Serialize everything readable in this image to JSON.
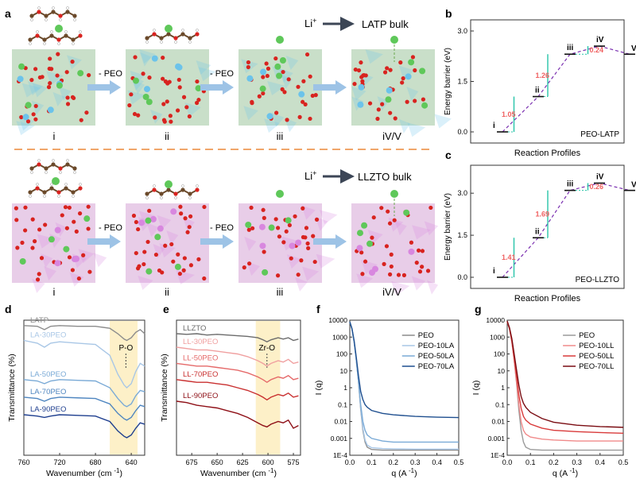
{
  "panels": {
    "a": "a",
    "b": "b",
    "c": "c",
    "d": "d",
    "e": "e",
    "f": "f",
    "g": "g"
  },
  "schematic": {
    "top": {
      "li_label": "Li",
      "li_sup": "+",
      "bulk": "LATP bulk",
      "steps": [
        "- PEO",
        "- PEO"
      ],
      "stages": [
        "i",
        "ii",
        "iii",
        "iV/V"
      ]
    },
    "bottom": {
      "li_label": "Li",
      "li_sup": "+",
      "bulk": "LLZTO bulk",
      "steps": [
        "- PEO",
        "- PEO"
      ],
      "stages": [
        "i",
        "ii",
        "iii",
        "iV/V"
      ]
    },
    "colors": {
      "oxygen": "#d8231f",
      "carbon": "#6b4a2b",
      "hydrogen": "#ffffff",
      "lithium": "#5fc85a",
      "ti_latp": "#6cc3ea",
      "zr_llzto": "#d887df",
      "arrow": "#9dc3e6",
      "divider": "#f0a66b"
    }
  },
  "energy": {
    "b": {
      "ylabel": "Energy barrier (eV)",
      "xlabel": "Reaction Profiles",
      "tag": "PEO-LATP",
      "yticks": [
        "3.0",
        "1.5",
        "0.0"
      ],
      "ylim": [
        0,
        3.0
      ],
      "states": [
        "i",
        "ii",
        "iii",
        "iV",
        "V"
      ],
      "levels": [
        0.0,
        1.05,
        2.31,
        2.55,
        2.31
      ],
      "barriers": [
        "1.05",
        "1.26",
        "0.24"
      ]
    },
    "c": {
      "ylabel": "Energy barrier (eV)",
      "xlabel": "Reaction Profiles",
      "tag": "PEO-LLZTO",
      "yticks": [
        "3.0",
        "1.5",
        "0.0"
      ],
      "ylim": [
        0,
        3.6
      ],
      "states": [
        "i",
        "ii",
        "iii",
        "iV",
        "V"
      ],
      "levels": [
        0.0,
        1.41,
        3.1,
        3.36,
        3.1
      ],
      "barriers": [
        "1.41",
        "1.69",
        "0.26"
      ]
    }
  },
  "chart_data": [
    {
      "type": "line",
      "title": "",
      "xlabel": "Wavenumber (cm -1)",
      "ylabel": "Transmittance (%)",
      "xlim": [
        760,
        625
      ],
      "xticks": [
        "760",
        "720",
        "680",
        "640"
      ],
      "highlight": {
        "from": 664,
        "to": 633,
        "label": "P-O",
        "at": 646
      },
      "series": [
        {
          "name": "LATP",
          "color": "#8c8c8c",
          "x": [
            760,
            745,
            737,
            730,
            720,
            700,
            680,
            664,
            655,
            648,
            645,
            640,
            635,
            630,
            625
          ],
          "y": [
            0.96,
            0.955,
            0.93,
            0.955,
            0.96,
            0.955,
            0.955,
            0.94,
            0.9,
            0.86,
            0.85,
            0.87,
            0.91,
            0.93,
            0.9
          ]
        },
        {
          "name": "LA-30PEO",
          "color": "#a9c7e6",
          "x": [
            760,
            745,
            737,
            730,
            720,
            700,
            680,
            664,
            655,
            648,
            645,
            640,
            635,
            630,
            625
          ],
          "y": [
            0.85,
            0.83,
            0.8,
            0.83,
            0.84,
            0.83,
            0.82,
            0.74,
            0.6,
            0.52,
            0.5,
            0.53,
            0.62,
            0.68,
            0.66
          ]
        },
        {
          "name": "LA-50PEO",
          "color": "#7aaad6",
          "x": [
            760,
            745,
            737,
            730,
            720,
            700,
            680,
            664,
            655,
            648,
            645,
            640,
            635,
            630,
            625
          ],
          "y": [
            0.56,
            0.55,
            0.53,
            0.55,
            0.56,
            0.555,
            0.55,
            0.5,
            0.42,
            0.37,
            0.36,
            0.38,
            0.44,
            0.48,
            0.47
          ]
        },
        {
          "name": "LA-70PEO",
          "color": "#4f86c0",
          "x": [
            760,
            745,
            737,
            730,
            720,
            700,
            680,
            664,
            655,
            648,
            645,
            640,
            635,
            630,
            625
          ],
          "y": [
            0.43,
            0.42,
            0.4,
            0.42,
            0.43,
            0.425,
            0.42,
            0.38,
            0.31,
            0.27,
            0.26,
            0.28,
            0.33,
            0.37,
            0.36
          ]
        },
        {
          "name": "LA-90PEO",
          "color": "#1f3f8f",
          "x": [
            760,
            745,
            737,
            730,
            720,
            700,
            680,
            664,
            655,
            648,
            645,
            640,
            635,
            630,
            625
          ],
          "y": [
            0.3,
            0.29,
            0.28,
            0.29,
            0.3,
            0.295,
            0.29,
            0.25,
            0.18,
            0.14,
            0.13,
            0.15,
            0.2,
            0.24,
            0.23
          ]
        }
      ]
    },
    {
      "type": "line",
      "title": "",
      "xlabel": "Wavenumber (cm -1)",
      "ylabel": "Transmittance (%)",
      "xlim": [
        690,
        568
      ],
      "xticks": [
        "675",
        "650",
        "625",
        "600",
        "575"
      ],
      "highlight": {
        "from": 612,
        "to": 588,
        "label": "Zr-O",
        "at": 601
      },
      "series": [
        {
          "name": "LLZTO",
          "color": "#6b6b6b",
          "x": [
            690,
            680,
            670,
            660,
            650,
            640,
            630,
            620,
            610,
            605,
            601,
            597,
            590,
            585,
            580,
            575,
            570
          ],
          "y": [
            0.9,
            0.895,
            0.9,
            0.89,
            0.895,
            0.89,
            0.885,
            0.88,
            0.87,
            0.855,
            0.84,
            0.855,
            0.87,
            0.86,
            0.87,
            0.85,
            0.86
          ]
        },
        {
          "name": "LL-30PEO",
          "color": "#f0a0a0",
          "x": [
            690,
            680,
            670,
            660,
            650,
            640,
            630,
            620,
            610,
            605,
            601,
            597,
            590,
            585,
            580,
            575,
            570
          ],
          "y": [
            0.8,
            0.79,
            0.78,
            0.78,
            0.77,
            0.76,
            0.75,
            0.73,
            0.7,
            0.68,
            0.66,
            0.68,
            0.7,
            0.69,
            0.71,
            0.68,
            0.69
          ]
        },
        {
          "name": "LL-50PEO",
          "color": "#e56a6a",
          "x": [
            690,
            680,
            670,
            660,
            650,
            640,
            630,
            620,
            610,
            605,
            601,
            597,
            590,
            585,
            580,
            575,
            570
          ],
          "y": [
            0.68,
            0.67,
            0.66,
            0.66,
            0.65,
            0.64,
            0.63,
            0.61,
            0.58,
            0.56,
            0.54,
            0.56,
            0.58,
            0.57,
            0.59,
            0.56,
            0.57
          ]
        },
        {
          "name": "LL-70PEO",
          "color": "#c93030",
          "x": [
            690,
            680,
            670,
            660,
            650,
            640,
            630,
            620,
            610,
            605,
            601,
            597,
            590,
            585,
            580,
            575,
            570
          ],
          "y": [
            0.56,
            0.55,
            0.54,
            0.54,
            0.53,
            0.52,
            0.5,
            0.48,
            0.45,
            0.43,
            0.41,
            0.43,
            0.45,
            0.44,
            0.46,
            0.43,
            0.44
          ]
        },
        {
          "name": "LL-90PEO",
          "color": "#8e0f16",
          "x": [
            690,
            680,
            670,
            660,
            650,
            640,
            630,
            620,
            610,
            605,
            601,
            597,
            590,
            585,
            580,
            575,
            570
          ],
          "y": [
            0.4,
            0.39,
            0.37,
            0.36,
            0.35,
            0.33,
            0.31,
            0.28,
            0.24,
            0.22,
            0.21,
            0.23,
            0.25,
            0.24,
            0.26,
            0.2,
            0.22
          ]
        }
      ]
    },
    {
      "type": "line",
      "title": "",
      "xlabel": "q (A -1)",
      "ylabel": "I (q)",
      "xlim": [
        0,
        0.5
      ],
      "ylim": [
        0.0001,
        10000
      ],
      "yscale": "log",
      "xticks": [
        "0.0",
        "0.1",
        "0.2",
        "0.3",
        "0.4",
        "0.5"
      ],
      "yticks": [
        "10000",
        "1000",
        "100",
        "10",
        "1",
        "0.1",
        "0.01",
        "0.001",
        "1E-4"
      ],
      "series": [
        {
          "name": "PEO",
          "color": "#8c8c8c",
          "x": [
            0.0,
            0.01,
            0.02,
            0.03,
            0.04,
            0.05,
            0.06,
            0.07,
            0.08,
            0.1,
            0.15,
            0.2,
            0.3,
            0.4,
            0.5
          ],
          "y": [
            8000,
            3000,
            500,
            40,
            2,
            0.05,
            0.003,
            0.0006,
            0.0003,
            0.00022,
            0.0002,
            0.0002,
            0.0002,
            0.0002,
            0.0002
          ]
        },
        {
          "name": "PEO-10LA",
          "color": "#a9c7e6",
          "x": [
            0.0,
            0.01,
            0.02,
            0.03,
            0.04,
            0.05,
            0.06,
            0.07,
            0.08,
            0.1,
            0.15,
            0.2,
            0.3,
            0.4,
            0.5
          ],
          "y": [
            8000,
            3000,
            500,
            40,
            2.2,
            0.06,
            0.004,
            0.0008,
            0.0004,
            0.00028,
            0.00025,
            0.00024,
            0.00023,
            0.00023,
            0.00023
          ]
        },
        {
          "name": "PEO-50LA",
          "color": "#7aaad6",
          "x": [
            0.0,
            0.01,
            0.02,
            0.03,
            0.04,
            0.05,
            0.06,
            0.07,
            0.08,
            0.1,
            0.15,
            0.2,
            0.3,
            0.4,
            0.5
          ],
          "y": [
            8000,
            3000,
            500,
            40,
            2.5,
            0.1,
            0.01,
            0.003,
            0.0016,
            0.001,
            0.0007,
            0.0006,
            0.0006,
            0.0006,
            0.0006
          ]
        },
        {
          "name": "PEO-70LA",
          "color": "#1f4f8f",
          "x": [
            0.0,
            0.01,
            0.02,
            0.03,
            0.04,
            0.05,
            0.06,
            0.07,
            0.08,
            0.1,
            0.15,
            0.2,
            0.3,
            0.4,
            0.5
          ],
          "y": [
            8000,
            3200,
            600,
            60,
            5,
            0.6,
            0.2,
            0.1,
            0.07,
            0.045,
            0.03,
            0.025,
            0.02,
            0.018,
            0.017
          ]
        }
      ]
    },
    {
      "type": "line",
      "title": "",
      "xlabel": "q (A -1)",
      "ylabel": "I (q)",
      "xlim": [
        0,
        0.5
      ],
      "ylim": [
        0.0001,
        10000
      ],
      "yscale": "log",
      "xticks": [
        "0.0",
        "0.1",
        "0.2",
        "0.3",
        "0.4",
        "0.5"
      ],
      "yticks": [
        "10000",
        "1000",
        "100",
        "10",
        "1",
        "0.1",
        "0.01",
        "0.001",
        "1E-4"
      ],
      "series": [
        {
          "name": "PEO",
          "color": "#9a9a9a",
          "x": [
            0.0,
            0.01,
            0.02,
            0.03,
            0.04,
            0.05,
            0.06,
            0.07,
            0.08,
            0.1,
            0.15,
            0.2,
            0.3,
            0.4,
            0.5
          ],
          "y": [
            8000,
            3000,
            500,
            40,
            2,
            0.05,
            0.003,
            0.0006,
            0.0003,
            0.00022,
            0.0002,
            0.0002,
            0.0002,
            0.0002,
            0.0002
          ]
        },
        {
          "name": "PEO-10LL",
          "color": "#f08a8a",
          "x": [
            0.0,
            0.01,
            0.02,
            0.03,
            0.04,
            0.05,
            0.06,
            0.07,
            0.08,
            0.1,
            0.15,
            0.2,
            0.3,
            0.4,
            0.5
          ],
          "y": [
            8000,
            3000,
            500,
            40,
            2.5,
            0.1,
            0.01,
            0.003,
            0.0018,
            0.0012,
            0.0009,
            0.0008,
            0.0007,
            0.0007,
            0.0007
          ]
        },
        {
          "name": "PEO-50LL",
          "color": "#d93a3a",
          "x": [
            0.0,
            0.01,
            0.02,
            0.03,
            0.04,
            0.05,
            0.06,
            0.07,
            0.08,
            0.1,
            0.15,
            0.2,
            0.3,
            0.4,
            0.5
          ],
          "y": [
            8000,
            3200,
            600,
            60,
            5,
            0.4,
            0.06,
            0.02,
            0.012,
            0.007,
            0.004,
            0.003,
            0.0025,
            0.0022,
            0.002
          ]
        },
        {
          "name": "PEO-70LL",
          "color": "#7a0c12",
          "x": [
            0.0,
            0.01,
            0.02,
            0.03,
            0.04,
            0.05,
            0.06,
            0.07,
            0.08,
            0.1,
            0.15,
            0.2,
            0.3,
            0.4,
            0.5
          ],
          "y": [
            9000,
            3500,
            800,
            100,
            12,
            1.5,
            0.3,
            0.12,
            0.07,
            0.035,
            0.015,
            0.009,
            0.006,
            0.005,
            0.0045
          ]
        }
      ]
    }
  ]
}
